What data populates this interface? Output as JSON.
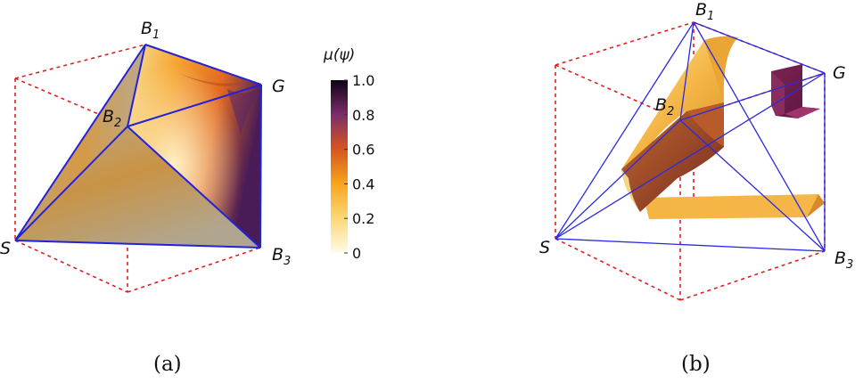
{
  "panels": [
    {
      "caption": "(a)",
      "vertices": {
        "B1": {
          "base": "B",
          "sub": "1"
        },
        "G": {
          "base": "G",
          "sub": ""
        },
        "B2": {
          "base": "B",
          "sub": "2"
        },
        "S": {
          "base": "S",
          "sub": ""
        },
        "B3": {
          "base": "B",
          "sub": "3"
        }
      }
    },
    {
      "caption": "(b)",
      "vertices": {
        "B1": {
          "base": "B",
          "sub": "1"
        },
        "G": {
          "base": "G",
          "sub": ""
        },
        "B2": {
          "base": "B",
          "sub": "2"
        },
        "S": {
          "base": "S",
          "sub": ""
        },
        "B3": {
          "base": "B",
          "sub": "3"
        }
      }
    }
  ],
  "colorbar": {
    "title": "μ(ψ)",
    "ticks": [
      "1.0",
      "0.8",
      "0.6",
      "0.4",
      "0.2",
      "0"
    ],
    "min": 0,
    "max": 1
  },
  "colors": {
    "cube_edges": "#e02020",
    "simplex_edges": "#2222d8"
  }
}
